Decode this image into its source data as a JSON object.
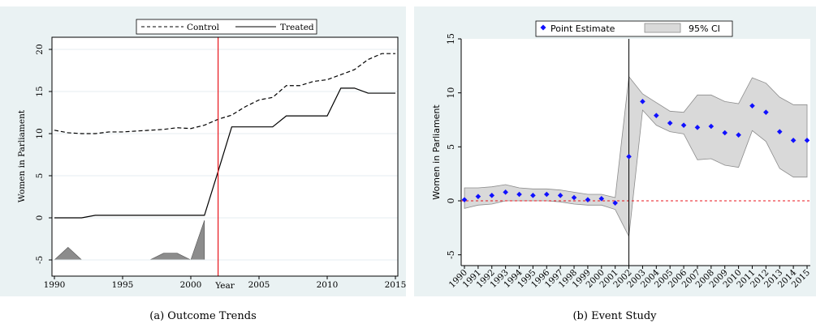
{
  "panels": [
    {
      "caption": "(a) Outcome Trends",
      "chart_data": {
        "type": "line",
        "xlabel": "Year",
        "ylabel": "Women in Parliament",
        "xlim": [
          1990,
          2015
        ],
        "ylim": [
          -5,
          20
        ],
        "x_ticks": [
          "1990",
          "1995",
          "2000",
          "2005",
          "2010",
          "2015"
        ],
        "y_ticks": [
          "-5",
          "0",
          "5",
          "10",
          "15",
          "20"
        ],
        "legend_position": "top",
        "vline_x": 2002,
        "vline_color": "#e8141b",
        "series": [
          {
            "name": "Control",
            "style": "dashed",
            "color": "#000000",
            "x": [
              1990,
              1991,
              1992,
              1993,
              1994,
              1995,
              1996,
              1997,
              1998,
              1999,
              2000,
              2001,
              2002,
              2003,
              2004,
              2005,
              2006,
              2007,
              2008,
              2009,
              2010,
              2011,
              2012,
              2013,
              2014,
              2015
            ],
            "y": [
              10.4,
              10.1,
              10.0,
              10.0,
              10.2,
              10.2,
              10.3,
              10.4,
              10.5,
              10.7,
              10.6,
              11.0,
              11.7,
              12.2,
              13.2,
              14.0,
              14.3,
              15.7,
              15.7,
              16.2,
              16.4,
              17.0,
              17.6,
              18.8,
              19.5,
              19.5
            ]
          },
          {
            "name": "Treated",
            "style": "solid",
            "color": "#000000",
            "x": [
              1990,
              1991,
              1992,
              1993,
              1994,
              1995,
              1996,
              1997,
              1998,
              1999,
              2000,
              2001,
              2002,
              2003,
              2004,
              2005,
              2006,
              2007,
              2008,
              2009,
              2010,
              2011,
              2012,
              2013,
              2014,
              2015
            ],
            "y": [
              0,
              0,
              0,
              0.3,
              0.3,
              0.3,
              0.3,
              0.3,
              0.3,
              0.3,
              0.3,
              0.3,
              5.5,
              10.8,
              10.8,
              10.8,
              10.8,
              12.1,
              12.1,
              12.1,
              12.1,
              15.4,
              15.4,
              14.8,
              14.8,
              14.8
            ]
          }
        ],
        "histogram": {
          "color": "#8c8c8c",
          "x": [
            1990,
            1991,
            1992,
            1993,
            1994,
            1995,
            1996,
            1997,
            1998,
            1999,
            2000,
            2001,
            2002
          ],
          "y": [
            -5,
            -3.5,
            -5,
            null,
            null,
            null,
            null,
            -5,
            -4.2,
            -4.2,
            -5,
            -0.3,
            null
          ]
        }
      }
    },
    {
      "caption": "(b) Event Study",
      "chart_data": {
        "type": "scatter",
        "xlabel": "",
        "ylabel": "Women in Parliament",
        "ylim": [
          -6,
          15
        ],
        "y_ticks": [
          "-5",
          "0",
          "5",
          "10",
          "15"
        ],
        "legend_position": "top",
        "legend": [
          {
            "label": "Point Estimate",
            "kind": "marker",
            "color": "#1010ff"
          },
          {
            "label": "95% CI",
            "kind": "band",
            "color": "#d9d9d9"
          }
        ],
        "categories": [
          "1990",
          "1991",
          "1992",
          "1993",
          "1994",
          "1995",
          "1996",
          "1997",
          "1998",
          "1999",
          "2000",
          "2001",
          "2002",
          "2003",
          "2004",
          "2005",
          "2006",
          "2007",
          "2008",
          "2009",
          "2010",
          "2011",
          "2012",
          "2013",
          "2014",
          "2015"
        ],
        "point_estimate": [
          0.1,
          0.4,
          0.5,
          0.8,
          0.6,
          0.5,
          0.6,
          0.5,
          0.3,
          0.1,
          0.2,
          -0.2,
          4.1,
          9.2,
          7.9,
          7.2,
          7.0,
          6.8,
          6.9,
          6.3,
          6.1,
          8.8,
          8.2,
          6.4,
          5.6,
          5.6
        ],
        "ci_lower": [
          -0.7,
          -0.4,
          -0.3,
          0.0,
          0.0,
          0.0,
          0.0,
          -0.1,
          -0.3,
          -0.4,
          -0.4,
          -0.8,
          -3.3,
          8.4,
          7.0,
          6.4,
          6.2,
          3.8,
          3.9,
          3.3,
          3.1,
          6.5,
          5.5,
          3.0,
          2.2,
          2.2
        ],
        "ci_upper": [
          1.2,
          1.2,
          1.3,
          1.5,
          1.2,
          1.1,
          1.1,
          1.0,
          0.8,
          0.6,
          0.6,
          0.3,
          11.5,
          9.9,
          9.1,
          8.3,
          8.2,
          9.8,
          9.8,
          9.2,
          9.0,
          11.4,
          10.9,
          9.6,
          8.9,
          8.9
        ],
        "vline_category": "2002",
        "hline_y": 0,
        "hline_color": "#e8141b",
        "marker_color": "#1010ff",
        "band_color": "#d9d9d9"
      }
    }
  ]
}
